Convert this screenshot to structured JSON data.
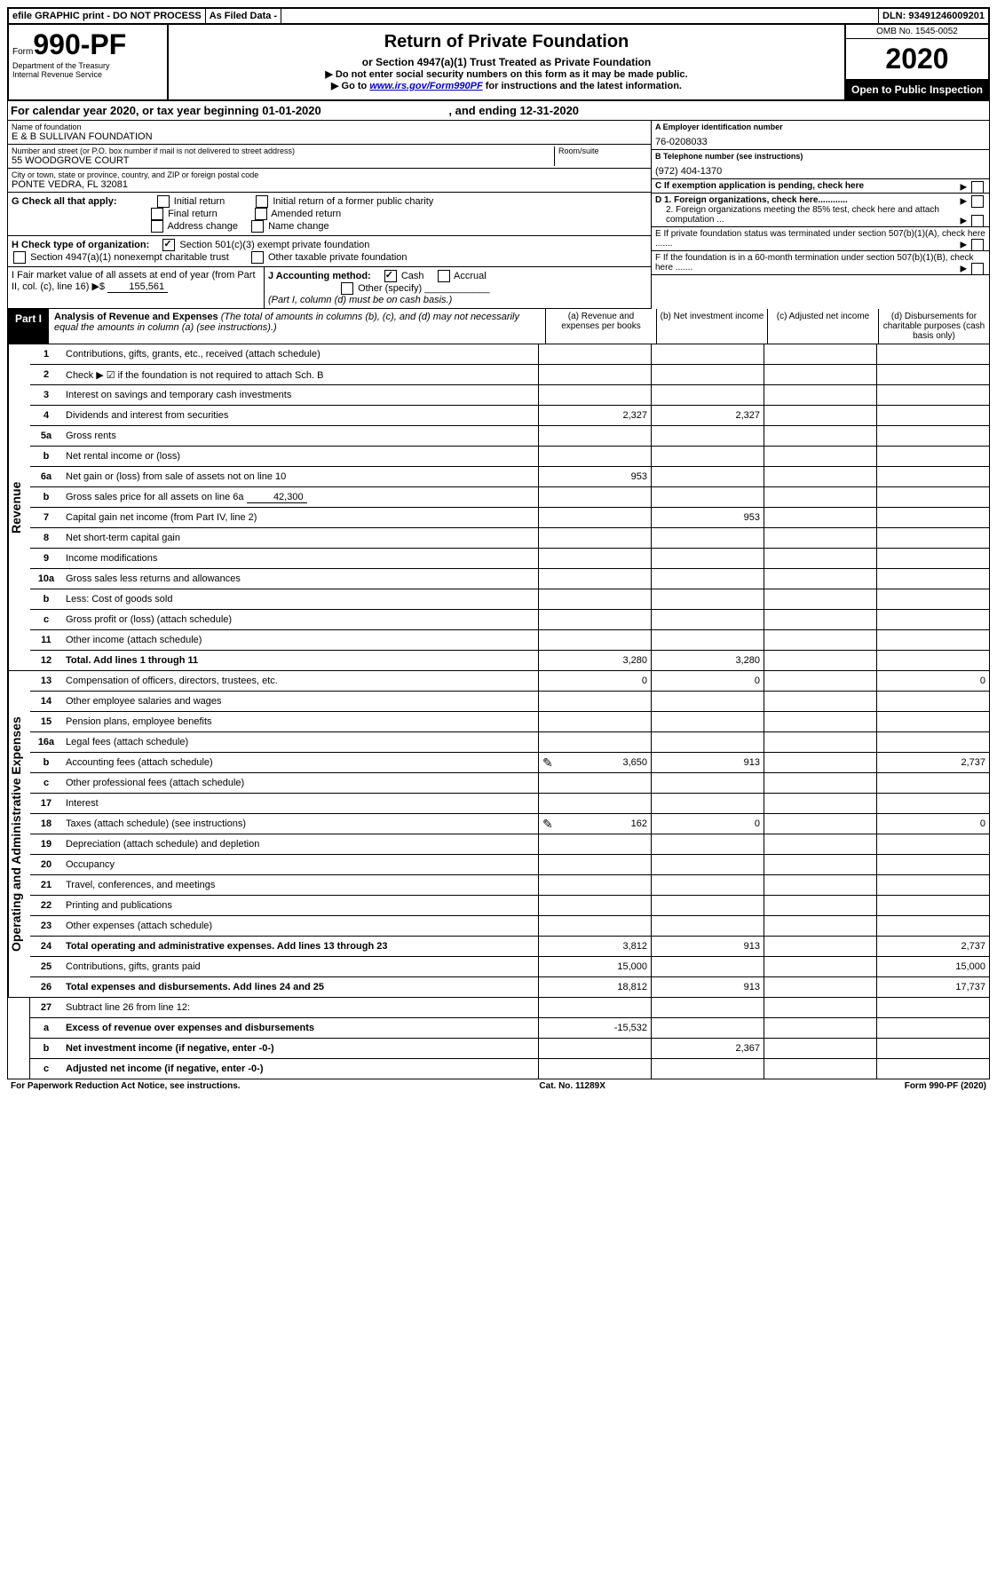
{
  "topbar": {
    "efile": "efile GRAPHIC print - DO NOT PROCESS",
    "asfiled": "As Filed Data -",
    "dln": "DLN: 93491246009201"
  },
  "header": {
    "form_prefix": "Form",
    "form_num": "990-PF",
    "dept": "Department of the Treasury",
    "irs": "Internal Revenue Service",
    "title": "Return of Private Foundation",
    "subtitle": "or Section 4947(a)(1) Trust Treated as Private Foundation",
    "instr1": "▶ Do not enter social security numbers on this form as it may be made public.",
    "instr2_pre": "▶ Go to ",
    "instr2_link": "www.irs.gov/Form990PF",
    "instr2_post": " for instructions and the latest information.",
    "omb": "OMB No. 1545-0052",
    "year": "2020",
    "open": "Open to Public Inspection"
  },
  "calyear": {
    "prefix": "For calendar year 2020, or tax year beginning ",
    "begin": "01-01-2020",
    "mid": ", and ending ",
    "end": "12-31-2020"
  },
  "entity": {
    "name_label": "Name of foundation",
    "name": "E & B SULLIVAN FOUNDATION",
    "addr_label": "Number and street (or P.O. box number if mail is not delivered to street address)",
    "addr": "55 WOODGROVE COURT",
    "room_label": "Room/suite",
    "city_label": "City or town, state or province, country, and ZIP or foreign postal code",
    "city": "PONTE VEDRA, FL  32081",
    "a_label": "A Employer identification number",
    "ein": "76-0208033",
    "b_label": "B Telephone number (see instructions)",
    "phone": "(972) 404-1370",
    "c_label": "C If exemption application is pending, check here",
    "d1": "D 1. Foreign organizations, check here............",
    "d2": "2. Foreign organizations meeting the 85% test, check here and attach computation ...",
    "e": "E If private foundation status was terminated under section 507(b)(1)(A), check here .......",
    "f": "F If the foundation is in a 60-month termination under section 507(b)(1)(B), check here ......."
  },
  "g": {
    "label": "G Check all that apply:",
    "initial": "Initial return",
    "initial_former": "Initial return of a former public charity",
    "final": "Final return",
    "amended": "Amended return",
    "addr_change": "Address change",
    "name_change": "Name change"
  },
  "h": {
    "label": "H Check type of organization:",
    "501c3": "Section 501(c)(3) exempt private foundation",
    "4947": "Section 4947(a)(1) nonexempt charitable trust",
    "other_tax": "Other taxable private foundation"
  },
  "i": {
    "label": "I Fair market value of all assets at end of year (from Part II, col. (c), line 16) ▶$",
    "value": "155,561"
  },
  "j": {
    "label": "J Accounting method:",
    "cash": "Cash",
    "accrual": "Accrual",
    "other": "Other (specify)",
    "note": "(Part I, column (d) must be on cash basis.)"
  },
  "part1": {
    "label": "Part I",
    "title": "Analysis of Revenue and Expenses",
    "note": "(The total of amounts in columns (b), (c), and (d) may not necessarily equal the amounts in column (a) (see instructions).)",
    "col_a": "(a) Revenue and expenses per books",
    "col_b": "(b) Net investment income",
    "col_c": "(c) Adjusted net income",
    "col_d": "(d) Disbursements for charitable purposes (cash basis only)"
  },
  "sections": {
    "revenue": "Revenue",
    "expenses": "Operating and Administrative Expenses"
  },
  "rows": [
    {
      "n": "1",
      "d": "Contributions, gifts, grants, etc., received (attach schedule)",
      "a": "",
      "b": "",
      "c": "",
      "cd": ""
    },
    {
      "n": "2",
      "d": "Check ▶ ☑ if the foundation is not required to attach Sch. B",
      "a": "",
      "b": "",
      "c": "",
      "cd": ""
    },
    {
      "n": "3",
      "d": "Interest on savings and temporary cash investments",
      "a": "",
      "b": "",
      "c": "",
      "cd": ""
    },
    {
      "n": "4",
      "d": "Dividends and interest from securities",
      "a": "2,327",
      "b": "2,327",
      "c": "",
      "cd": ""
    },
    {
      "n": "5a",
      "d": "Gross rents",
      "a": "",
      "b": "",
      "c": "",
      "cd": ""
    },
    {
      "n": "b",
      "d": "Net rental income or (loss)",
      "a": "",
      "b": "",
      "c": "",
      "cd": ""
    },
    {
      "n": "6a",
      "d": "Net gain or (loss) from sale of assets not on line 10",
      "a": "953",
      "b": "",
      "c": "",
      "cd": ""
    },
    {
      "n": "b",
      "d": "Gross sales price for all assets on line 6a",
      "inline": "42,300",
      "a": "",
      "b": "",
      "c": "",
      "cd": ""
    },
    {
      "n": "7",
      "d": "Capital gain net income (from Part IV, line 2)",
      "a": "",
      "b": "953",
      "c": "",
      "cd": ""
    },
    {
      "n": "8",
      "d": "Net short-term capital gain",
      "a": "",
      "b": "",
      "c": "",
      "cd": ""
    },
    {
      "n": "9",
      "d": "Income modifications",
      "a": "",
      "b": "",
      "c": "",
      "cd": ""
    },
    {
      "n": "10a",
      "d": "Gross sales less returns and allowances",
      "a": "",
      "b": "",
      "c": "",
      "cd": ""
    },
    {
      "n": "b",
      "d": "Less: Cost of goods sold",
      "a": "",
      "b": "",
      "c": "",
      "cd": ""
    },
    {
      "n": "c",
      "d": "Gross profit or (loss) (attach schedule)",
      "a": "",
      "b": "",
      "c": "",
      "cd": ""
    },
    {
      "n": "11",
      "d": "Other income (attach schedule)",
      "a": "",
      "b": "",
      "c": "",
      "cd": ""
    },
    {
      "n": "12",
      "d": "Total. Add lines 1 through 11",
      "bold": true,
      "a": "3,280",
      "b": "3,280",
      "c": "",
      "cd": ""
    }
  ],
  "exp_rows": [
    {
      "n": "13",
      "d": "Compensation of officers, directors, trustees, etc.",
      "a": "0",
      "b": "0",
      "c": "",
      "cd": "0"
    },
    {
      "n": "14",
      "d": "Other employee salaries and wages",
      "a": "",
      "b": "",
      "c": "",
      "cd": ""
    },
    {
      "n": "15",
      "d": "Pension plans, employee benefits",
      "a": "",
      "b": "",
      "c": "",
      "cd": ""
    },
    {
      "n": "16a",
      "d": "Legal fees (attach schedule)",
      "a": "",
      "b": "",
      "c": "",
      "cd": ""
    },
    {
      "n": "b",
      "d": "Accounting fees (attach schedule)",
      "icon": true,
      "a": "3,650",
      "b": "913",
      "c": "",
      "cd": "2,737"
    },
    {
      "n": "c",
      "d": "Other professional fees (attach schedule)",
      "a": "",
      "b": "",
      "c": "",
      "cd": ""
    },
    {
      "n": "17",
      "d": "Interest",
      "a": "",
      "b": "",
      "c": "",
      "cd": ""
    },
    {
      "n": "18",
      "d": "Taxes (attach schedule) (see instructions)",
      "icon": true,
      "a": "162",
      "b": "0",
      "c": "",
      "cd": "0"
    },
    {
      "n": "19",
      "d": "Depreciation (attach schedule) and depletion",
      "a": "",
      "b": "",
      "c": "",
      "cd": ""
    },
    {
      "n": "20",
      "d": "Occupancy",
      "a": "",
      "b": "",
      "c": "",
      "cd": ""
    },
    {
      "n": "21",
      "d": "Travel, conferences, and meetings",
      "a": "",
      "b": "",
      "c": "",
      "cd": ""
    },
    {
      "n": "22",
      "d": "Printing and publications",
      "a": "",
      "b": "",
      "c": "",
      "cd": ""
    },
    {
      "n": "23",
      "d": "Other expenses (attach schedule)",
      "a": "",
      "b": "",
      "c": "",
      "cd": ""
    },
    {
      "n": "24",
      "d": "Total operating and administrative expenses. Add lines 13 through 23",
      "bold": true,
      "a": "3,812",
      "b": "913",
      "c": "",
      "cd": "2,737"
    },
    {
      "n": "25",
      "d": "Contributions, gifts, grants paid",
      "a": "15,000",
      "b": "",
      "c": "",
      "cd": "15,000"
    },
    {
      "n": "26",
      "d": "Total expenses and disbursements. Add lines 24 and 25",
      "bold": true,
      "a": "18,812",
      "b": "913",
      "c": "",
      "cd": "17,737"
    }
  ],
  "final_rows": [
    {
      "n": "27",
      "d": "Subtract line 26 from line 12:",
      "a": "",
      "b": "",
      "c": "",
      "cd": ""
    },
    {
      "n": "a",
      "d": "Excess of revenue over expenses and disbursements",
      "bold": true,
      "a": "-15,532",
      "b": "",
      "c": "",
      "cd": ""
    },
    {
      "n": "b",
      "d": "Net investment income (if negative, enter -0-)",
      "bold": true,
      "a": "",
      "b": "2,367",
      "c": "",
      "cd": ""
    },
    {
      "n": "c",
      "d": "Adjusted net income (if negative, enter -0-)",
      "bold": true,
      "a": "",
      "b": "",
      "c": "",
      "cd": ""
    }
  ],
  "footer": {
    "left": "For Paperwork Reduction Act Notice, see instructions.",
    "mid": "Cat. No. 11289X",
    "right": "Form 990-PF (2020)"
  }
}
